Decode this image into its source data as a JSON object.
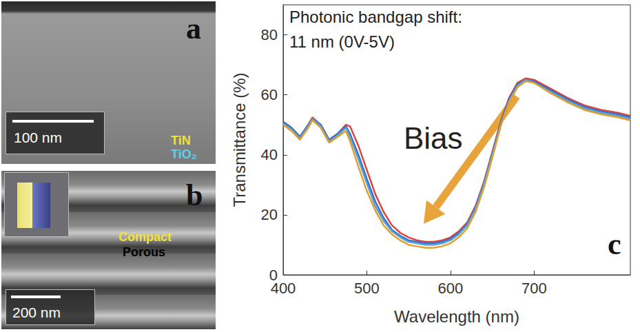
{
  "chart_data": {
    "type": "line",
    "x": [
      400,
      410,
      420,
      430,
      435,
      445,
      455,
      465,
      475,
      480,
      490,
      500,
      510,
      520,
      530,
      540,
      550,
      560,
      570,
      580,
      590,
      600,
      610,
      620,
      630,
      640,
      650,
      660,
      670,
      680,
      690,
      700,
      720,
      740,
      760,
      780,
      800,
      815
    ],
    "series": [
      {
        "color": "#d9453c",
        "values": [
          51,
          49,
          46,
          50,
          52.5,
          50,
          45,
          47,
          50,
          49.5,
          43,
          35,
          27,
          21,
          16.5,
          14,
          12.5,
          11.5,
          11,
          11,
          11.5,
          12.5,
          14.5,
          17.5,
          23,
          31,
          41,
          51,
          59,
          64,
          65.5,
          65,
          62,
          59,
          56.5,
          55,
          54,
          53
        ]
      },
      {
        "color": "#3a6fc4",
        "values": [
          51,
          49,
          46,
          50,
          52,
          50,
          45,
          47,
          49.5,
          47,
          40,
          32,
          24.5,
          19,
          15,
          13,
          11.5,
          11,
          10.5,
          10.5,
          11,
          12,
          14,
          17,
          22.5,
          30.5,
          40.5,
          50.5,
          58.5,
          63.5,
          65,
          64.5,
          61.5,
          58.5,
          56,
          54.5,
          53.5,
          52.5
        ]
      },
      {
        "color": "#5aa0d8",
        "values": [
          50.5,
          48.5,
          45.5,
          49.5,
          52,
          49.5,
          44.5,
          46.5,
          49,
          46,
          38.5,
          30.5,
          23,
          18,
          14.5,
          12.5,
          11,
          10.5,
          10,
          10,
          10.5,
          11.5,
          13.5,
          16.5,
          22,
          30,
          40,
          50,
          58,
          63,
          65,
          64,
          61,
          58,
          55.5,
          54,
          53,
          52
        ]
      },
      {
        "color": "#e0a030",
        "values": [
          50,
          48,
          45,
          49,
          51.5,
          49,
          44,
          46,
          48,
          44.5,
          36,
          28,
          21.5,
          16.5,
          13.5,
          11.5,
          10,
          9.5,
          9,
          9,
          9.5,
          10.5,
          12.5,
          15.5,
          21,
          29,
          39,
          49.5,
          57.5,
          62.5,
          64.5,
          64,
          60.5,
          57.5,
          55,
          53.5,
          52.5,
          51.5
        ]
      }
    ],
    "xlabel": "Wavelength (nm)",
    "ylabel": "Transmittance (%)",
    "xlim": [
      400,
      815
    ],
    "xticks": [
      400,
      500,
      600,
      700
    ],
    "ylim": [
      0,
      90
    ],
    "yticks": [
      0,
      20,
      40,
      60,
      80
    ],
    "grid": false,
    "annotations": [
      "Photonic bandgap shift:",
      "11 nm (0V-5V)",
      "Bias"
    ],
    "panel_label": "c"
  },
  "panels": [
    {
      "label": "a",
      "scale_bar": "100 nm",
      "layers": [
        "TiN",
        "TiO₂"
      ]
    },
    {
      "label": "b",
      "scale_bar": "200 nm",
      "layers": [
        "Compact",
        "Porous"
      ]
    }
  ]
}
